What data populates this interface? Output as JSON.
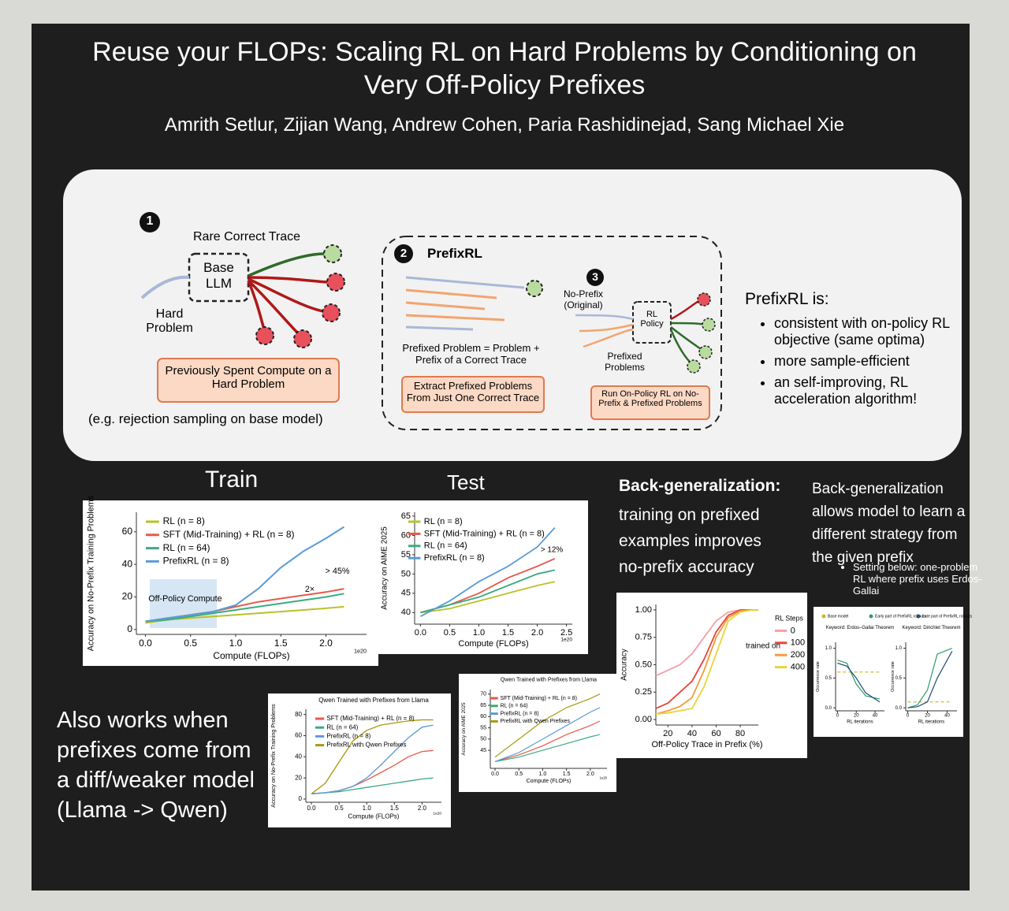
{
  "header": {
    "title": "Reuse your FLOPs: Scaling RL on Hard Problems by Conditioning on Very Off-Policy Prefixes",
    "authors": "Amrith Setlur, Zijian Wang, Andrew Cohen, Paria Rashidinejad, Sang Michael Xie"
  },
  "overview": {
    "step1": {
      "number": "1",
      "trace": "Rare Correct Trace",
      "model": "Base LLM",
      "input": "Hard Problem",
      "box": "Previously Spent Compute on a Hard Problem",
      "note": "(e.g. rejection sampling on base model)"
    },
    "step2": {
      "number": "2",
      "title": "PrefixRL",
      "caption": "Prefixed Problem = Problem + Prefix of a Correct Trace",
      "box": "Extract Prefixed Problems From Just One Correct Trace"
    },
    "step3": {
      "number": "3",
      "no_prefix": "No-Prefix (Original)",
      "policy": "RL Policy",
      "prefixed": "Prefixed Problems",
      "box": "Run On-Policy RL on No-Prefix & Prefixed Problems"
    },
    "summary": {
      "title": "PrefixRL is:",
      "bullets": [
        "consistent with on-policy RL objective (same optima)",
        "more sample-efficient",
        "an self-improving, RL acceleration algorithm!"
      ]
    }
  },
  "sections": {
    "train": "Train",
    "test": "Test",
    "backgen_bold": "Back-generalization:",
    "backgen_text": "training on prefixed examples improves no-prefix accuracy",
    "backgen2": "Back-generalization allows model to learn a different strategy from the given prefix",
    "backgen2_bullet": "Setting below: one-problem RL where prefix uses Erdos-Gallai",
    "also_works": "Also works when prefixes come from a diff/weaker model (Llama -> Qwen)"
  },
  "occurrence_legend": [
    {
      "name": "Base model",
      "color": "#c9b52c"
    },
    {
      "name": "Early part of PrefixRL rollouts",
      "color": "#2e9c6a"
    },
    {
      "name": "Late part of PrefixRL rollouts",
      "color": "#1f4e79"
    }
  ],
  "charts": [
    {
      "type": "line",
      "xlabel": "Compute (FLOPs)",
      "ylabel": "Accuracy on No-Prefix Training Problems",
      "xnote": "1e20",
      "xlim": [
        -0.1,
        2.45
      ],
      "ylim": [
        -3,
        72
      ],
      "xticks": [
        {
          "value": 0,
          "label": "0.0"
        },
        {
          "value": 0.5,
          "label": "0.5"
        },
        {
          "value": 1,
          "label": "1.0"
        },
        {
          "value": 1.5,
          "label": "1.5"
        },
        {
          "value": 2,
          "label": "2.0"
        }
      ],
      "yticks": [
        0,
        20,
        40,
        60
      ],
      "x": [
        0,
        0.25,
        0.5,
        0.75,
        1.0,
        1.25,
        1.5,
        1.75,
        2.0,
        2.2
      ],
      "series": [
        {
          "name": "RL (n = 8)",
          "color": "#b8c22a",
          "values": [
            4,
            6,
            7,
            8,
            9,
            10,
            11,
            12,
            13,
            14
          ]
        },
        {
          "name": "SFT (Mid-Training) + RL (n = 8)",
          "color": "#e8594a",
          "values": [
            5,
            7,
            9,
            11,
            14,
            17,
            19,
            21,
            23,
            25
          ]
        },
        {
          "name": "RL (n = 64)",
          "color": "#3bab7f",
          "values": [
            5,
            6,
            8,
            10,
            12,
            14,
            16,
            18,
            20,
            22
          ]
        },
        {
          "name": "PrefixRL (n = 8)",
          "color": "#5b9bd5",
          "values": [
            5,
            7,
            9,
            11,
            15,
            25,
            38,
            48,
            56,
            63
          ]
        }
      ],
      "annotations": [
        "> 45%",
        "2×",
        "Off-Policy Compute"
      ]
    },
    {
      "type": "line",
      "xlabel": "Compute (FLOPs)",
      "ylabel": "Accuracy on AIME 2025",
      "xnote": "1e20",
      "xlim": [
        -0.1,
        2.6
      ],
      "ylim": [
        37,
        66
      ],
      "xticks": [
        {
          "value": 0,
          "label": "0.0"
        },
        {
          "value": 0.5,
          "label": "0.5"
        },
        {
          "value": 1,
          "label": "1.0"
        },
        {
          "value": 1.5,
          "label": "1.5"
        },
        {
          "value": 2,
          "label": "2.0"
        },
        {
          "value": 2.5,
          "label": "2.5"
        }
      ],
      "yticks": [
        40,
        45,
        50,
        55,
        60,
        65
      ],
      "x": [
        0,
        0.5,
        1.0,
        1.5,
        2.0,
        2.3
      ],
      "series": [
        {
          "name": "RL (n = 8)",
          "color": "#b8c22a",
          "values": [
            40,
            41,
            43,
            45,
            47,
            48
          ]
        },
        {
          "name": "SFT (Mid-Training) + RL (n = 8)",
          "color": "#e8594a",
          "values": [
            40,
            42,
            45,
            49,
            52,
            54
          ]
        },
        {
          "name": "RL (n = 64)",
          "color": "#3bab7f",
          "values": [
            40,
            42,
            44,
            47,
            50,
            51
          ]
        },
        {
          "name": "PrefixRL (n = 8)",
          "color": "#5b9bd5",
          "values": [
            39,
            43,
            48,
            52,
            57,
            62
          ]
        }
      ],
      "annotations": [
        "> 12%"
      ]
    },
    {
      "type": "line",
      "xlabel": "Off-Policy Trace in Prefix (%)",
      "ylabel": "Accuracy",
      "legend_title": "RL Steps",
      "xlim": [
        10,
        95
      ],
      "ylim": [
        -0.05,
        1.05
      ],
      "xticks": [
        20,
        40,
        60,
        80
      ],
      "yticks": [
        {
          "value": 0,
          "label": "0.00"
        },
        {
          "value": 0.25,
          "label": "0.25"
        },
        {
          "value": 0.5,
          "label": "0.50"
        },
        {
          "value": 0.75,
          "label": "0.75"
        },
        {
          "value": 1,
          "label": "1.00"
        }
      ],
      "x": [
        10,
        20,
        30,
        40,
        50,
        60,
        70,
        80,
        90,
        95
      ],
      "series": [
        {
          "name": "0",
          "color": "#f4a0a8",
          "values": [
            0.4,
            0.45,
            0.5,
            0.6,
            0.75,
            0.9,
            0.98,
            1,
            1,
            1
          ]
        },
        {
          "name": "100",
          "color": "#e8453c",
          "values": [
            0.1,
            0.15,
            0.25,
            0.35,
            0.55,
            0.8,
            0.95,
            1,
            1,
            1
          ]
        },
        {
          "name": "200",
          "color": "#f39c3b",
          "values": [
            0.05,
            0.08,
            0.12,
            0.2,
            0.45,
            0.75,
            0.93,
            0.99,
            1,
            1
          ]
        },
        {
          "name": "400",
          "color": "#e8d43a",
          "values": [
            0.05,
            0.06,
            0.08,
            0.1,
            0.3,
            0.6,
            0.9,
            0.98,
            1,
            1
          ]
        }
      ],
      "annotations": [
        "trained on"
      ]
    },
    {
      "type": "line",
      "title": "Qwen Trained with Prefixes from Llama",
      "xlabel": "Compute (FLOPs)",
      "ylabel": "Accuracy on No-Prefix Training Problems",
      "xnote": "1e20",
      "xlim": [
        -0.1,
        2.35
      ],
      "ylim": [
        -3,
        85
      ],
      "xticks": [
        {
          "value": 0,
          "label": "0.0"
        },
        {
          "value": 0.5,
          "label": "0.5"
        },
        {
          "value": 1,
          "label": "1.0"
        },
        {
          "value": 1.5,
          "label": "1.5"
        },
        {
          "value": 2,
          "label": "2.0"
        }
      ],
      "yticks": [
        0,
        20,
        40,
        60,
        80
      ],
      "x": [
        0,
        0.25,
        0.5,
        0.75,
        1,
        1.25,
        1.5,
        1.75,
        2,
        2.2
      ],
      "series": [
        {
          "name": "SFT (Mid-Training) + RL (n = 8)",
          "color": "#e8594a",
          "values": [
            5,
            6,
            8,
            12,
            18,
            25,
            32,
            40,
            45,
            46
          ]
        },
        {
          "name": "RL (n = 64)",
          "color": "#3bab7f",
          "values": [
            5,
            6,
            7,
            9,
            11,
            13,
            15,
            17,
            19,
            20
          ]
        },
        {
          "name": "PrefixRL (n = 8)",
          "color": "#5b9bd5",
          "values": [
            5,
            6,
            8,
            12,
            20,
            32,
            45,
            58,
            68,
            70
          ]
        },
        {
          "name": "PrefixRL with Qwen Prefixes",
          "color": "#a89a10",
          "values": [
            5,
            15,
            35,
            55,
            65,
            70,
            72,
            74,
            75,
            75
          ]
        }
      ]
    },
    {
      "type": "line",
      "title": "Qwen Trained with Prefixes from Llama",
      "xlabel": "Compute (FLOPs)",
      "ylabel": "Accuracy on AIME 2025",
      "xnote": "1e20",
      "xlim": [
        -0.1,
        2.35
      ],
      "ylim": [
        37,
        72
      ],
      "xticks": [
        {
          "value": 0,
          "label": "0.0"
        },
        {
          "value": 0.5,
          "label": "0.5"
        },
        {
          "value": 1,
          "label": "1.0"
        },
        {
          "value": 1.5,
          "label": "1.5"
        },
        {
          "value": 2,
          "label": "2.0"
        }
      ],
      "yticks": [
        45,
        50,
        55,
        60,
        65,
        70
      ],
      "x": [
        0,
        0.5,
        1,
        1.5,
        2,
        2.2
      ],
      "series": [
        {
          "name": "SFT (Mid-Training) + RL (n = 8)",
          "color": "#e8594a",
          "values": [
            40,
            43,
            47,
            52,
            56,
            58
          ]
        },
        {
          "name": "RL (n = 64)",
          "color": "#3bab7f",
          "values": [
            40,
            42,
            45,
            48,
            51,
            52
          ]
        },
        {
          "name": "PrefixRL (n = 8)",
          "color": "#5b9bd5",
          "values": [
            40,
            44,
            50,
            56,
            62,
            64
          ]
        },
        {
          "name": "PrefixRL with Qwen Prefixes",
          "color": "#a89a10",
          "values": [
            42,
            50,
            58,
            64,
            68,
            70
          ]
        }
      ]
    },
    {
      "type": "line",
      "title": "Keyword: Erdos–Gallai Theorem",
      "xlabel": "RL iterations",
      "ylabel": "Occurrence rate",
      "xlim": [
        -2,
        50
      ],
      "ylim": [
        -0.05,
        1.1
      ],
      "xticks": [
        0,
        20,
        40
      ],
      "yticks": [
        {
          "value": 0,
          "label": "0.0"
        },
        {
          "value": 0.5,
          "label": "0.5"
        },
        {
          "value": 1,
          "label": "1.0"
        }
      ],
      "x": [
        0,
        10,
        20,
        30,
        45
      ],
      "series": [
        {
          "color": "#c9b52c",
          "style": "dashed",
          "values": [
            0.6,
            0.6,
            0.6,
            0.6,
            0.6
          ]
        },
        {
          "color": "#2e9c6a",
          "values": [
            0.8,
            0.75,
            0.4,
            0.2,
            0.15
          ]
        },
        {
          "color": "#1f4e79",
          "values": [
            0.75,
            0.7,
            0.5,
            0.25,
            0.1
          ]
        }
      ]
    },
    {
      "type": "line",
      "title": "Keyword: Dirichlet Theorem",
      "xlabel": "RL iterations",
      "ylabel": "Occurrence rate",
      "xlim": [
        -2,
        50
      ],
      "ylim": [
        -0.05,
        1.1
      ],
      "xticks": [
        0,
        20,
        40
      ],
      "yticks": [
        {
          "value": 0,
          "label": "0.0"
        },
        {
          "value": 0.5,
          "label": "0.5"
        },
        {
          "value": 1,
          "label": "1.0"
        }
      ],
      "x": [
        0,
        10,
        20,
        30,
        45
      ],
      "series": [
        {
          "color": "#c9b52c",
          "style": "dashed",
          "values": [
            0.1,
            0.1,
            0.1,
            0.1,
            0.1
          ]
        },
        {
          "color": "#2e9c6a",
          "values": [
            0,
            0.05,
            0.3,
            0.9,
            1
          ]
        },
        {
          "color": "#1f4e79",
          "values": [
            0,
            0.02,
            0.1,
            0.5,
            0.95
          ]
        }
      ]
    }
  ]
}
